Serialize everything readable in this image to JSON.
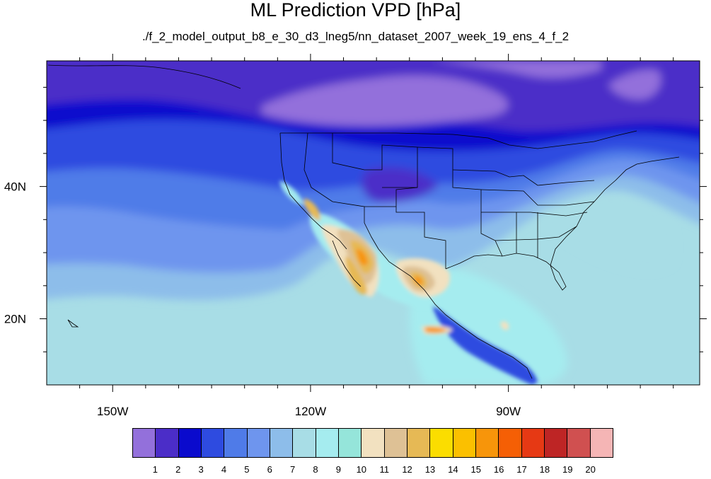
{
  "title": "ML Prediction VPD [hPa]",
  "subtitle": "./f_2_model_output_b8_e_30_d3_lneg5/nn_dataset_2007_week_19_ens_4_f_2",
  "map": {
    "lon_range": [
      -160,
      -61
    ],
    "lat_range": [
      10,
      59
    ],
    "lon_ticks": [
      {
        "value": -150,
        "label": "150W"
      },
      {
        "value": -120,
        "label": "120W"
      },
      {
        "value": -90,
        "label": "90W"
      }
    ],
    "lat_ticks": [
      {
        "value": 40,
        "label": "40N"
      },
      {
        "value": 20,
        "label": "20N"
      }
    ]
  },
  "colorbar": {
    "colors": [
      "#9370DB",
      "#4B2DC8",
      "#0A0ACD",
      "#2E4BE0",
      "#4F7BE8",
      "#6E95EE",
      "#8DBDEA",
      "#A8DDE6",
      "#A5ECEF",
      "#95E5DA",
      "#F2E1C0",
      "#DEC195",
      "#E6B955",
      "#FBDD00",
      "#FBC000",
      "#F7950A",
      "#F55F05",
      "#E63914",
      "#BE2525",
      "#D05050",
      "#F5B5B5"
    ],
    "labels": [
      "1",
      "2",
      "3",
      "4",
      "5",
      "6",
      "7",
      "8",
      "9",
      "10",
      "11",
      "12",
      "13",
      "14",
      "15",
      "16",
      "17",
      "18",
      "19",
      "20"
    ]
  }
}
